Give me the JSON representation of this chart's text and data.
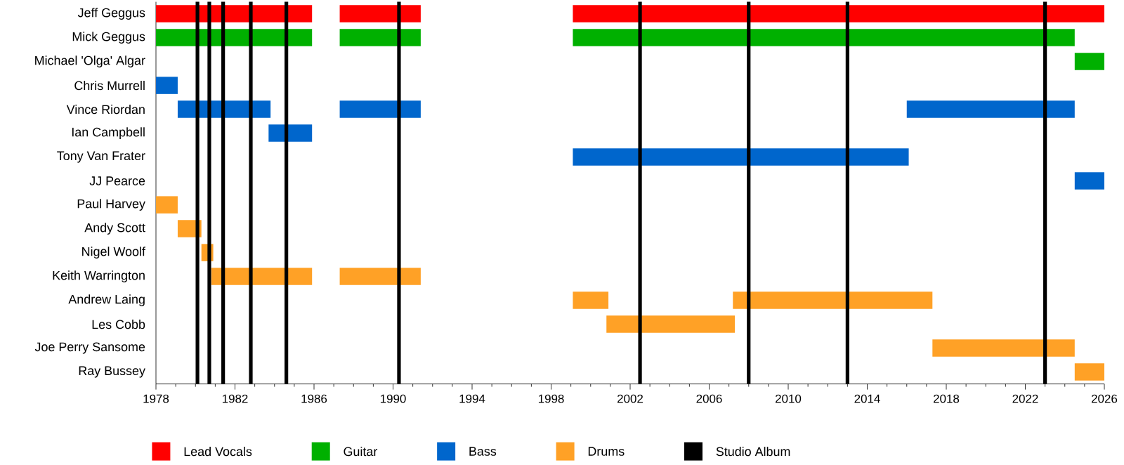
{
  "chart_data": {
    "type": "bar",
    "orientation": "horizontal",
    "categories": [
      "Jeff Geggus",
      "Mick Geggus",
      "Michael 'Olga' Algar",
      "Chris Murrell",
      "Vince Riordan",
      "Ian Campbell",
      "Tony Van Frater",
      "JJ Pearce",
      "Paul Harvey",
      "Andy Scott",
      "Nigel Woolf",
      "Keith Warrington",
      "Andrew Laing",
      "Les Cobb",
      "Joe Perry Sansome",
      "Ray Bussey"
    ],
    "xlim": [
      1978,
      2026
    ],
    "xticks": [
      1978,
      1982,
      1986,
      1990,
      1994,
      1998,
      2002,
      2006,
      2010,
      2014,
      2018,
      2022,
      2026
    ],
    "legend": "bottom",
    "grid": false,
    "series": [
      {
        "name": "Lead Vocals",
        "color": "#ff0000",
        "base": [
          1978,
          null,
          null,
          null,
          null,
          null,
          null,
          null,
          null,
          null,
          null,
          null,
          null,
          null,
          null,
          null
        ],
        "values": [
          7.9,
          null,
          null,
          null,
          null,
          null,
          null,
          null,
          null,
          null,
          null,
          null,
          null,
          null,
          null,
          null
        ]
      },
      {
        "color": "#ff0000",
        "base": [
          1987.3,
          null,
          null,
          null,
          null,
          null,
          null,
          null,
          null,
          null,
          null,
          null,
          null,
          null,
          null,
          null
        ],
        "values": [
          4.1,
          null,
          null,
          null,
          null,
          null,
          null,
          null,
          null,
          null,
          null,
          null,
          null,
          null,
          null,
          null
        ]
      },
      {
        "color": "#ff0000",
        "base": [
          1999.1,
          null,
          null,
          null,
          null,
          null,
          null,
          null,
          null,
          null,
          null,
          null,
          null,
          null,
          null,
          null
        ],
        "values": [
          26.9,
          null,
          null,
          null,
          null,
          null,
          null,
          null,
          null,
          null,
          null,
          null,
          null,
          null,
          null,
          null
        ]
      },
      {
        "name": "Guitar",
        "color": "#00b000",
        "base": [
          null,
          1978,
          2024.5,
          null,
          null,
          null,
          null,
          null,
          null,
          null,
          null,
          null,
          null,
          null,
          null,
          null
        ],
        "values": [
          null,
          7.9,
          1.5,
          null,
          null,
          null,
          null,
          null,
          null,
          null,
          null,
          null,
          null,
          null,
          null,
          null
        ]
      },
      {
        "color": "#00b000",
        "base": [
          null,
          1987.3,
          null,
          null,
          null,
          null,
          null,
          null,
          null,
          null,
          null,
          null,
          null,
          null,
          null,
          null
        ],
        "values": [
          null,
          4.1,
          null,
          null,
          null,
          null,
          null,
          null,
          null,
          null,
          null,
          null,
          null,
          null,
          null,
          null
        ]
      },
      {
        "color": "#00b000",
        "base": [
          null,
          1999.1,
          null,
          null,
          null,
          null,
          null,
          null,
          null,
          null,
          null,
          null,
          null,
          null,
          null,
          null
        ],
        "values": [
          null,
          25.4,
          null,
          null,
          null,
          null,
          null,
          null,
          null,
          null,
          null,
          null,
          null,
          null,
          null,
          null
        ]
      },
      {
        "name": "Bass",
        "color": "#0066cc",
        "base": [
          null,
          null,
          null,
          1978,
          1979.1,
          1983.7,
          1999.1,
          2024.5,
          null,
          null,
          null,
          null,
          null,
          null,
          null,
          null
        ],
        "values": [
          null,
          null,
          null,
          1.1,
          4.7,
          2.2,
          17.0,
          1.5,
          null,
          null,
          null,
          null,
          null,
          null,
          null,
          null
        ]
      },
      {
        "color": "#0066cc",
        "base": [
          null,
          null,
          null,
          null,
          1987.3,
          null,
          null,
          null,
          null,
          null,
          null,
          null,
          null,
          null,
          null,
          null
        ],
        "values": [
          null,
          null,
          null,
          null,
          4.1,
          null,
          null,
          null,
          null,
          null,
          null,
          null,
          null,
          null,
          null,
          null
        ]
      },
      {
        "color": "#0066cc",
        "base": [
          null,
          null,
          null,
          null,
          2016.0,
          null,
          null,
          null,
          null,
          null,
          null,
          null,
          null,
          null,
          null,
          null
        ],
        "values": [
          null,
          null,
          null,
          null,
          8.5,
          null,
          null,
          null,
          null,
          null,
          null,
          null,
          null,
          null,
          null,
          null
        ]
      },
      {
        "name": "Drums",
        "color": "#ffa126",
        "base": [
          null,
          null,
          null,
          null,
          null,
          null,
          null,
          null,
          1978,
          1979.1,
          1980.3,
          1980.8,
          1999.1,
          2000.8,
          2017.3,
          2024.5
        ],
        "values": [
          null,
          null,
          null,
          null,
          null,
          null,
          null,
          null,
          1.1,
          1.2,
          0.6,
          5.1,
          1.8,
          6.5,
          7.2,
          1.5
        ]
      },
      {
        "color": "#ffa126",
        "base": [
          null,
          null,
          null,
          null,
          null,
          null,
          null,
          null,
          null,
          null,
          null,
          1987.3,
          2007.2,
          null,
          null,
          null
        ],
        "values": [
          null,
          null,
          null,
          null,
          null,
          null,
          null,
          null,
          null,
          null,
          null,
          4.1,
          10.1,
          null,
          null,
          null
        ]
      }
    ],
    "ref_lines": [
      {
        "axis": "x",
        "value": 1980.1,
        "color": "#000000",
        "label": "Studio Album"
      },
      {
        "axis": "x",
        "value": 1980.7,
        "color": "#000000"
      },
      {
        "axis": "x",
        "value": 1981.4,
        "color": "#000000"
      },
      {
        "axis": "x",
        "value": 1982.8,
        "color": "#000000"
      },
      {
        "axis": "x",
        "value": 1984.6,
        "color": "#000000"
      },
      {
        "axis": "x",
        "value": 1990.3,
        "color": "#000000"
      },
      {
        "axis": "x",
        "value": 2002.5,
        "color": "#000000"
      },
      {
        "axis": "x",
        "value": 2008.0,
        "color": "#000000"
      },
      {
        "axis": "x",
        "value": 2013.0,
        "color": "#000000"
      },
      {
        "axis": "x",
        "value": 2023.0,
        "color": "#000000"
      }
    ]
  }
}
